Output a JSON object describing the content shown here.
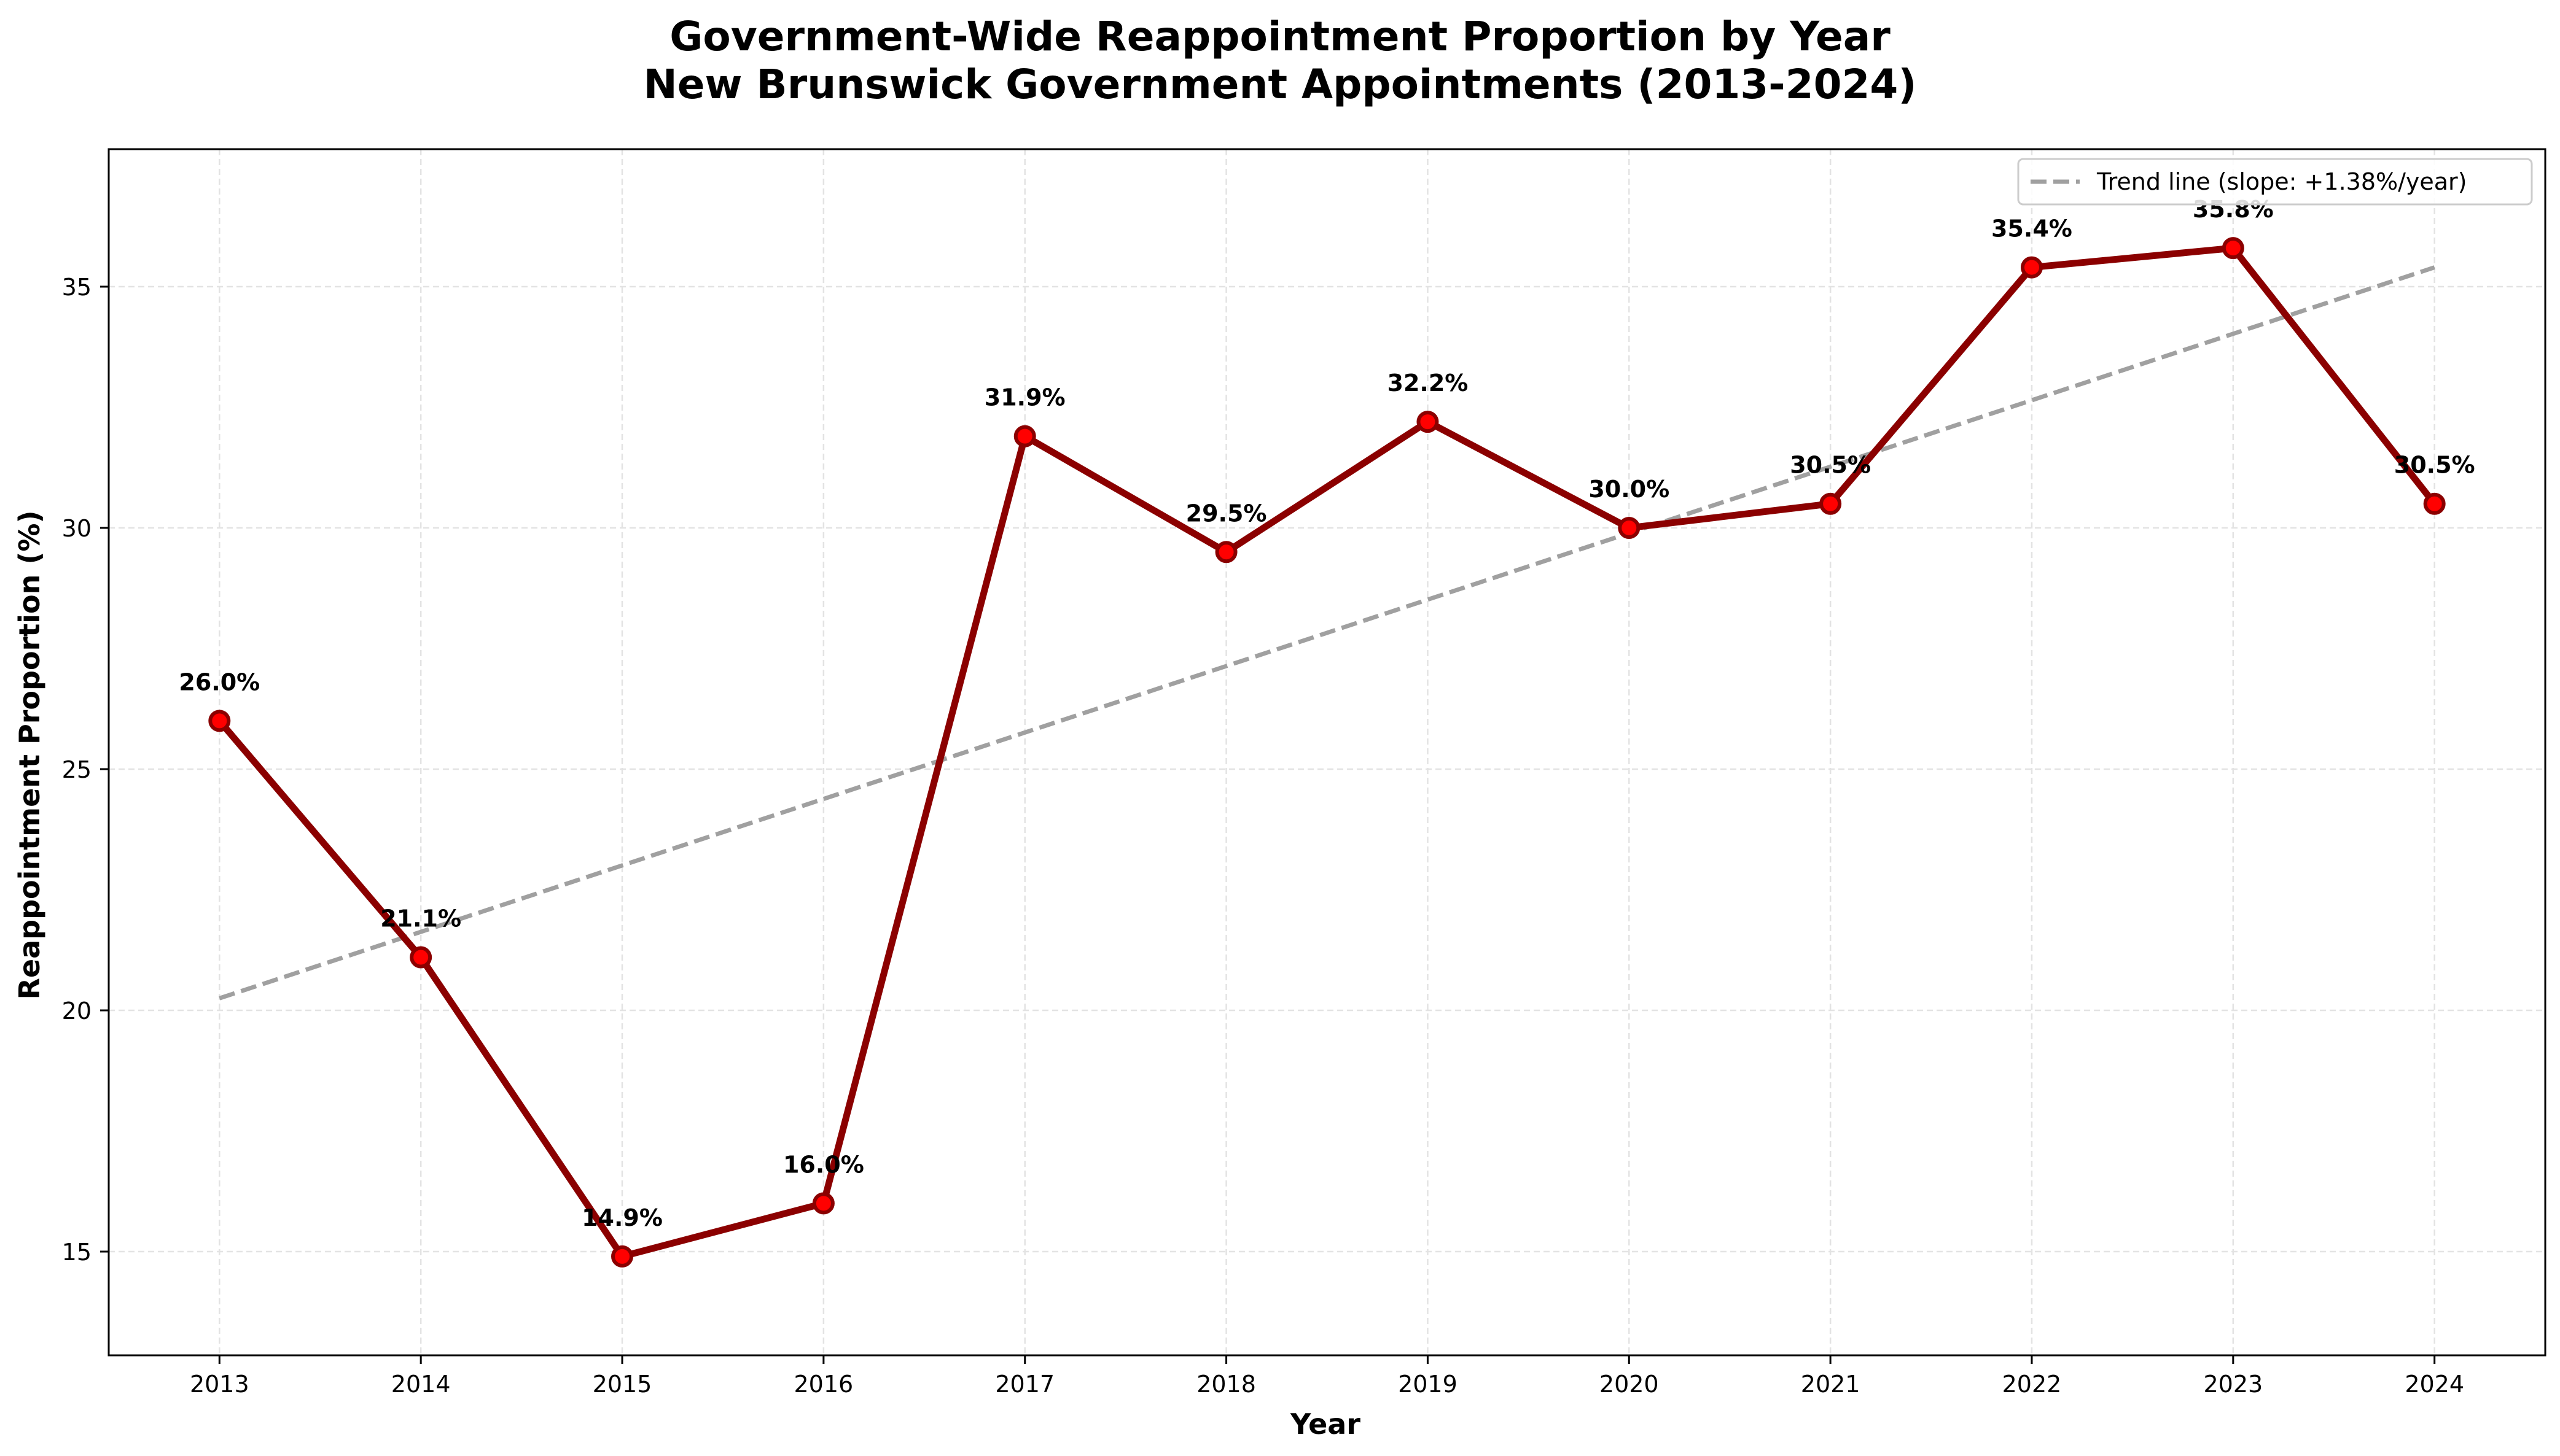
{
  "chart_data": {
    "type": "line",
    "title_line1": "Government-Wide Reappointment Proportion by Year",
    "title_line2": "New Brunswick Government Appointments (2013-2024)",
    "xlabel": "Year",
    "ylabel": "Reappointment Proportion (%)",
    "x": [
      2013,
      2014,
      2015,
      2016,
      2017,
      2018,
      2019,
      2020,
      2021,
      2022,
      2023,
      2024
    ],
    "series": [
      {
        "values": [
          26.0,
          21.1,
          14.9,
          16.0,
          31.9,
          29.5,
          32.2,
          30.0,
          30.5,
          35.4,
          35.8,
          30.5
        ],
        "labels": [
          "26.0%",
          "21.1%",
          "14.9%",
          "16.0%",
          "31.9%",
          "29.5%",
          "32.2%",
          "30.0%",
          "30.5%",
          "35.4%",
          "35.8%",
          "30.5%"
        ],
        "color": "#8b0000",
        "marker_color": "#ff0000"
      }
    ],
    "trend": {
      "name": "Trend line (slope: +1.38%/year)",
      "start_value": 20.25,
      "end_value": 35.4,
      "color": "#a0a0a0"
    },
    "xlim": [
      2012.45,
      2024.55
    ],
    "ylim": [
      12.85,
      37.85
    ],
    "yticks": [
      15,
      20,
      25,
      30,
      35
    ],
    "grid": true,
    "legend": "upper-right"
  }
}
